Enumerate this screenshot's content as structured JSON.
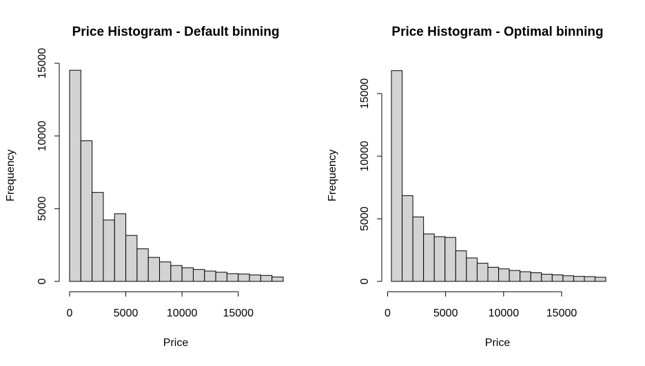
{
  "chart_data": [
    {
      "type": "bar",
      "title": "Price Histogram - Default binning",
      "xlabel": "Price",
      "ylabel": "Frequency",
      "xlim": [
        0,
        19000
      ],
      "ylim": [
        0,
        15000
      ],
      "x_ticks": [
        0,
        5000,
        10000,
        15000
      ],
      "y_ticks": [
        0,
        5000,
        10000,
        15000
      ],
      "bin_width": 1000,
      "bins": [
        [
          0,
          1000,
          14520
        ],
        [
          1000,
          2000,
          9670
        ],
        [
          2000,
          3000,
          6120
        ],
        [
          3000,
          4000,
          4220
        ],
        [
          4000,
          5000,
          4650
        ],
        [
          5000,
          6000,
          3160
        ],
        [
          6000,
          7000,
          2240
        ],
        [
          7000,
          8000,
          1650
        ],
        [
          8000,
          9000,
          1340
        ],
        [
          9000,
          10000,
          1090
        ],
        [
          10000,
          11000,
          940
        ],
        [
          11000,
          12000,
          820
        ],
        [
          12000,
          13000,
          710
        ],
        [
          13000,
          14000,
          630
        ],
        [
          14000,
          15000,
          530
        ],
        [
          15000,
          16000,
          510
        ],
        [
          16000,
          17000,
          440
        ],
        [
          17000,
          18000,
          410
        ],
        [
          18000,
          19000,
          300
        ]
      ]
    },
    {
      "type": "bar",
      "title": "Price Histogram - Optimal binning",
      "xlabel": "Price",
      "ylabel": "Frequency",
      "xlim": [
        326,
        18800
      ],
      "ylim": [
        0,
        15000
      ],
      "x_ticks": [
        0,
        5000,
        10000,
        15000
      ],
      "y_ticks": [
        0,
        5000,
        10000,
        15000
      ],
      "bins": [
        [
          326,
          1250,
          16830
        ],
        [
          1250,
          2174,
          6850
        ],
        [
          2174,
          3098,
          5150
        ],
        [
          3098,
          4022,
          3790
        ],
        [
          4022,
          4946,
          3570
        ],
        [
          4946,
          5870,
          3510
        ],
        [
          5870,
          6794,
          2440
        ],
        [
          6794,
          7718,
          1870
        ],
        [
          7718,
          8642,
          1450
        ],
        [
          8642,
          9566,
          1130
        ],
        [
          9566,
          10490,
          1000
        ],
        [
          10490,
          11414,
          870
        ],
        [
          11414,
          12338,
          770
        ],
        [
          12338,
          13262,
          690
        ],
        [
          13262,
          14186,
          570
        ],
        [
          14186,
          15110,
          520
        ],
        [
          15110,
          16034,
          450
        ],
        [
          16034,
          16958,
          400
        ],
        [
          16958,
          17882,
          380
        ],
        [
          17882,
          18806,
          330
        ]
      ]
    }
  ]
}
